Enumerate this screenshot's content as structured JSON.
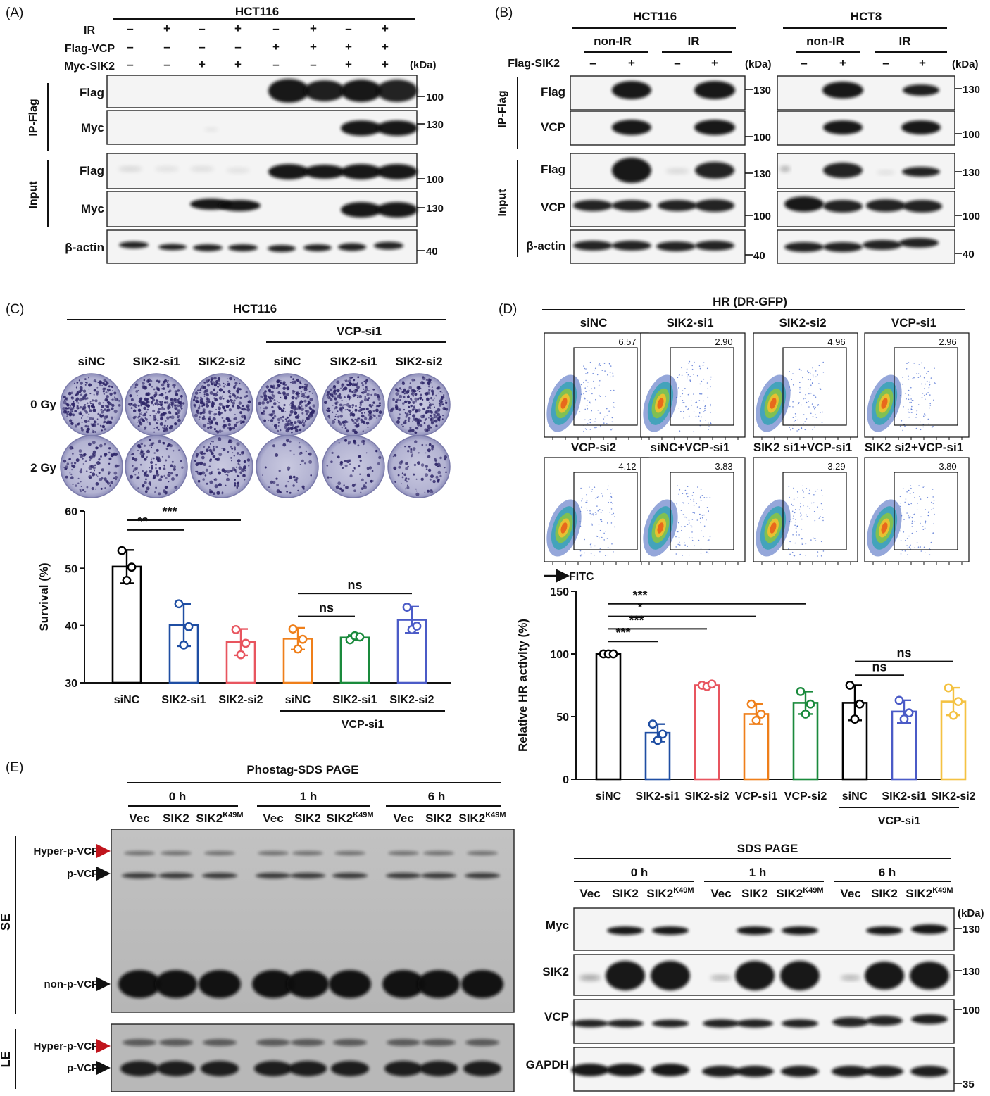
{
  "panels": {
    "A": {
      "letter": "(A)",
      "cell_line": "HCT116",
      "kda": "(kDa)",
      "row_labels": [
        "IR",
        "Flag-VCP",
        "Myc-SIK2"
      ],
      "signs": [
        [
          "–",
          "+",
          "–",
          "+",
          "–",
          "+",
          "–",
          "+"
        ],
        [
          "–",
          "–",
          "–",
          "–",
          "+",
          "+",
          "+",
          "+"
        ],
        [
          "–",
          "–",
          "+",
          "+",
          "–",
          "–",
          "+",
          "+"
        ]
      ],
      "group_labels": [
        "IP-Flag",
        "Input"
      ],
      "blots": [
        "Flag",
        "Myc",
        "Flag",
        "Myc",
        "β-actin"
      ],
      "markers": [
        "100",
        "130",
        "100",
        "130",
        "40"
      ]
    },
    "B": {
      "letter": "(B)",
      "cells": [
        "HCT116",
        "HCT8"
      ],
      "conditions": [
        "non-IR",
        "IR",
        "non-IR",
        "IR"
      ],
      "row_label": "Flag-SIK2",
      "signs": [
        "–",
        "+",
        "–",
        "+"
      ],
      "kda": "(kDa)",
      "group_labels": [
        "IP-Flag",
        "Input"
      ],
      "blots": [
        "Flag",
        "VCP",
        "Flag",
        "VCP",
        "β-actin"
      ],
      "markers_left": [
        "130",
        "100",
        "130",
        "100",
        "40"
      ],
      "markers_right": [
        "130",
        "100",
        "130",
        "100",
        "40"
      ]
    },
    "C": {
      "letter": "(C)",
      "cell_line": "HCT116",
      "group": "VCP-si1",
      "plate_labels": [
        "siNC",
        "SIK2-si1",
        "SIK2-si2",
        "siNC",
        "SIK2-si1",
        "SIK2-si2"
      ],
      "doses": [
        "0 Gy",
        "2 Gy"
      ],
      "ylabel": "Survival (%)",
      "yticks": [
        "60",
        "50",
        "40",
        "30"
      ],
      "xlabels": [
        "siNC",
        "SIK2-si1",
        "SIK2-si2",
        "siNC",
        "SIK2-si1",
        "SIK2-si2"
      ],
      "group_under": "VCP-si1",
      "sig": [
        "**",
        "***",
        "ns",
        "ns"
      ]
    },
    "D": {
      "letter": "(D)",
      "title": "HR (DR-GFP)",
      "axis": "FITC",
      "flows": [
        {
          "name": "siNC",
          "value": "6.57"
        },
        {
          "name": "SIK2-si1",
          "value": "2.90"
        },
        {
          "name": "SIK2-si2",
          "value": "4.96"
        },
        {
          "name": "VCP-si1",
          "value": "2.96"
        },
        {
          "name": "VCP-si2",
          "value": "4.12"
        },
        {
          "name": "siNC+VCP-si1",
          "value": "3.83"
        },
        {
          "name": "SIK2 si1+VCP-si1",
          "value": "3.29"
        },
        {
          "name": "SIK2 si2+VCP-si1",
          "value": "3.80"
        }
      ],
      "ylabel": "Relative HR activity  (%)",
      "yticks": [
        "150",
        "100",
        "50",
        "0"
      ],
      "xlabels": [
        "siNC",
        "SIK2-si1",
        "SIK2-si2",
        "VCP-si1",
        "VCP-si2",
        "siNC",
        "SIK2-si1",
        "SIK2-si2"
      ],
      "group_under": "VCP-si1",
      "sig": [
        "***",
        "***",
        "*",
        "***",
        "ns",
        "ns"
      ]
    },
    "E": {
      "letter": "(E)",
      "title": "Phostag-SDS PAGE",
      "times": [
        "0 h",
        "1 h",
        "6 h"
      ],
      "lanes": [
        "Vec",
        "SIK2",
        "SIK2",
        "Vec",
        "SIK2",
        "SIK2",
        "Vec",
        "SIK2",
        "SIK2"
      ],
      "mut": "K49M",
      "bands_se": [
        "Hyper-p-VCP",
        "p-VCP",
        "non-p-VCP"
      ],
      "bands_le": [
        "Hyper-p-VCP",
        "p-VCP"
      ],
      "exposures": [
        "SE",
        "LE"
      ],
      "sds_title": "SDS PAGE",
      "kda": "(kDa)",
      "sds_blots": [
        "Myc",
        "SIK2",
        "VCP",
        "GAPDH"
      ],
      "sds_markers": [
        "130",
        "130",
        "100",
        "35"
      ]
    }
  },
  "chart_data": [
    {
      "type": "bar",
      "panel": "C",
      "ylabel": "Survival (%)",
      "ylim": [
        30,
        60
      ],
      "categories": [
        "siNC",
        "SIK2-si1",
        "SIK2-si2",
        "siNC",
        "SIK2-si1",
        "SIK2-si2"
      ],
      "values": [
        50.3,
        40.1,
        37.1,
        37.7,
        37.9,
        41.0
      ],
      "errors": [
        2.9,
        3.7,
        2.3,
        1.9,
        0.4,
        2.3
      ],
      "points": [
        [
          53.1,
          47.9,
          50.2
        ],
        [
          43.8,
          36.6,
          39.8
        ],
        [
          39.3,
          34.9,
          36.9
        ],
        [
          39.4,
          35.9,
          37.6
        ],
        [
          37.5,
          38.2,
          38.0
        ],
        [
          43.2,
          39.3,
          39.9
        ]
      ],
      "colors": [
        "#000000",
        "#1f4ea3",
        "#e8555f",
        "#ef7f1a",
        "#1a8a3c",
        "#4b5bc7"
      ],
      "group_label": "VCP-si1"
    },
    {
      "type": "bar",
      "panel": "D",
      "ylabel": "Relative HR activity  (%)",
      "ylim": [
        0,
        150
      ],
      "categories": [
        "siNC",
        "SIK2-si1",
        "SIK2-si2",
        "VCP-si1",
        "VCP-si2",
        "siNC",
        "SIK2-si1",
        "SIK2-si2"
      ],
      "values": [
        100,
        37,
        75,
        52,
        61,
        61,
        54,
        62
      ],
      "errors": [
        0.5,
        7,
        0.8,
        8,
        9,
        14,
        9,
        11
      ],
      "points": [
        [
          100,
          100,
          100
        ],
        [
          44,
          31,
          36
        ],
        [
          75,
          74,
          76
        ],
        [
          60,
          47,
          52
        ],
        [
          70,
          52,
          60
        ],
        [
          75,
          48,
          60
        ],
        [
          63,
          48,
          53
        ],
        [
          73,
          51,
          62
        ]
      ],
      "colors": [
        "#000000",
        "#1f4ea3",
        "#e8555f",
        "#ef7f1a",
        "#1a8a3c",
        "#000000",
        "#4b5bc7",
        "#f4c242"
      ],
      "group_label": "VCP-si1"
    }
  ]
}
